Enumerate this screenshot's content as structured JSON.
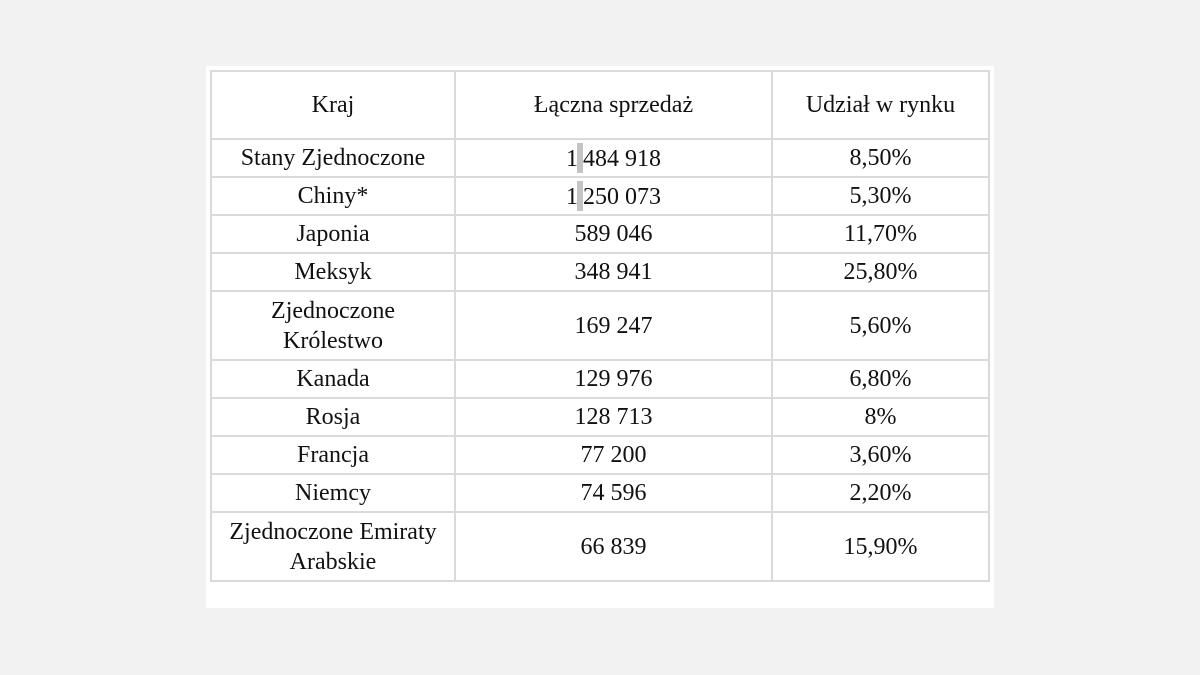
{
  "table": {
    "headers": [
      "Kraj",
      "Łączna sprzedaż",
      "Udział w rynku"
    ],
    "rows": [
      {
        "country": "Stany Zjednoczone",
        "sales_head": "1",
        "sales_tail": "484 918",
        "share": "8,50%"
      },
      {
        "country": "Chiny*",
        "sales_head": "1",
        "sales_tail": "250 073",
        "share": "5,30%"
      },
      {
        "country": "Japonia",
        "sales": "589 046",
        "share": "11,70%"
      },
      {
        "country": "Meksyk",
        "sales": "348 941",
        "share": "25,80%"
      },
      {
        "country_line1": "Zjednoczone",
        "country_line2": "Królestwo",
        "sales": "169 247",
        "share": "5,60%"
      },
      {
        "country": "Kanada",
        "sales": "129 976",
        "share": "6,80%"
      },
      {
        "country": "Rosja",
        "sales": "128 713",
        "share": "8%"
      },
      {
        "country": "Francja",
        "sales": "77 200",
        "share": "3,60%"
      },
      {
        "country": "Niemcy",
        "sales": "74 596",
        "share": "2,20%"
      },
      {
        "country_line1": "Zjednoczone Emiraty",
        "country_line2": "Arabskie",
        "sales": "66 839",
        "share": "15,90%"
      }
    ]
  },
  "colors": {
    "page_background": "#f2f2f2",
    "table_background": "#ffffff",
    "border": "#dadada",
    "text": "#111111",
    "text_cursor": "#c4c4c4"
  }
}
